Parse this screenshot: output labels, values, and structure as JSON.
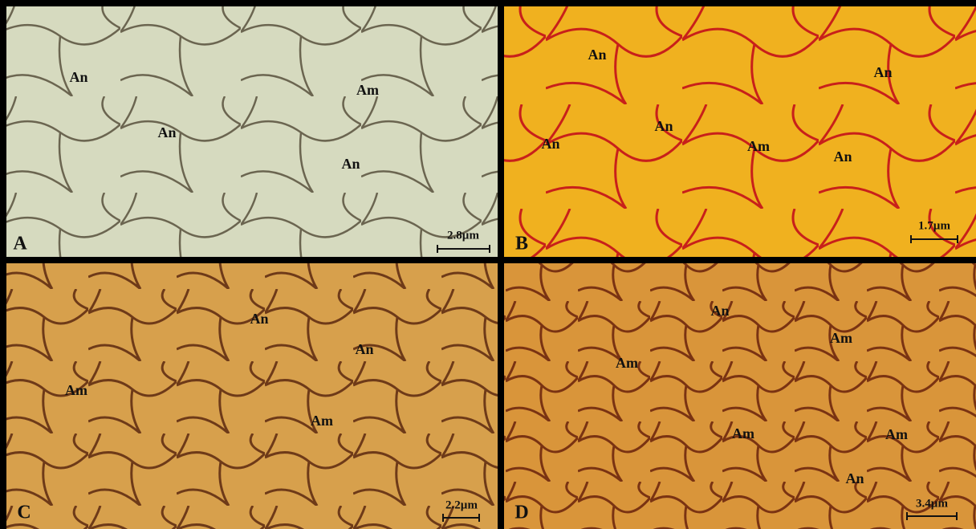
{
  "panels": [
    {
      "letter": "A",
      "scale": "2.8µm",
      "labels": [
        "An",
        "Am",
        "An",
        "An"
      ]
    },
    {
      "letter": "B",
      "scale": "1.7µm",
      "labels": [
        "An",
        "An",
        "An",
        "An",
        "Am",
        "An"
      ]
    },
    {
      "letter": "C",
      "scale": "2.2µm",
      "labels": [
        "An",
        "An",
        "Am",
        "Am"
      ]
    },
    {
      "letter": "D",
      "scale": "3.4µm",
      "labels": [
        "An",
        "Am",
        "Am",
        "Am",
        "Am",
        "An"
      ]
    }
  ]
}
